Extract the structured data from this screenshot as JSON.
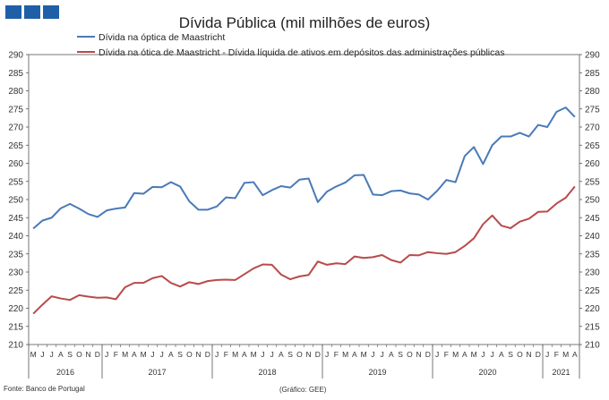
{
  "branding": {
    "logo_color": "#1f5fa8"
  },
  "chart_data": {
    "type": "line",
    "title": "Dívida Pública (mil milhões de euros)",
    "xlabel": "",
    "ylabel": "",
    "ylim": [
      210,
      290
    ],
    "yticks": [
      210,
      215,
      220,
      225,
      230,
      235,
      240,
      245,
      250,
      255,
      260,
      265,
      270,
      275,
      280,
      285,
      290
    ],
    "grid": false,
    "legend_position": "top",
    "x": [
      "M",
      "J",
      "J",
      "A",
      "S",
      "O",
      "N",
      "D",
      "J",
      "F",
      "M",
      "A",
      "M",
      "J",
      "J",
      "A",
      "S",
      "O",
      "N",
      "D",
      "J",
      "F",
      "M",
      "A",
      "M",
      "J",
      "J",
      "A",
      "S",
      "O",
      "N",
      "D",
      "J",
      "F",
      "M",
      "A",
      "M",
      "J",
      "J",
      "A",
      "S",
      "O",
      "N",
      "D",
      "J",
      "F",
      "M",
      "A",
      "M",
      "J",
      "J",
      "A",
      "S",
      "O",
      "N",
      "D",
      "J",
      "F",
      "M",
      "A"
    ],
    "years": [
      {
        "label": "2016",
        "start": 0,
        "end": 8
      },
      {
        "label": "2017",
        "start": 8,
        "end": 20
      },
      {
        "label": "2018",
        "start": 20,
        "end": 32
      },
      {
        "label": "2019",
        "start": 32,
        "end": 44
      },
      {
        "label": "2020",
        "start": 44,
        "end": 56
      },
      {
        "label": "2021",
        "start": 56,
        "end": 60
      }
    ],
    "series": [
      {
        "name": "Dívida na óptica de Maastricht",
        "color": "#4a7ab8",
        "values": [
          242.0,
          244.2,
          245.0,
          247.6,
          248.8,
          247.5,
          246.0,
          245.2,
          247.0,
          247.5,
          247.8,
          251.8,
          251.6,
          253.5,
          253.4,
          254.8,
          253.6,
          249.5,
          247.2,
          247.2,
          248.1,
          250.6,
          250.4,
          254.6,
          254.8,
          251.2,
          252.6,
          253.7,
          253.3,
          255.5,
          255.8,
          249.3,
          252.2,
          253.6,
          254.7,
          256.7,
          256.8,
          251.4,
          251.2,
          252.3,
          252.5,
          251.7,
          251.4,
          250.0,
          252.4,
          255.4,
          254.8,
          262.0,
          264.5,
          259.8,
          265.0,
          267.4,
          267.4,
          268.4,
          267.4,
          270.6,
          270.0,
          274.2,
          275.4,
          272.8
        ]
      },
      {
        "name": "Dívida na ótica de Maastricht - Dívida líquida de ativos em depósitos das administrações públicas",
        "color": "#b94a4a",
        "values": [
          218.5,
          221.0,
          223.3,
          222.7,
          222.3,
          223.6,
          223.2,
          222.9,
          223.0,
          222.5,
          225.8,
          227.0,
          227.0,
          228.3,
          228.9,
          227.0,
          226.0,
          227.2,
          226.7,
          227.5,
          227.8,
          227.9,
          227.8,
          229.4,
          231.0,
          232.1,
          232.0,
          229.3,
          228.0,
          228.8,
          229.2,
          232.9,
          232.0,
          232.4,
          232.2,
          234.3,
          233.9,
          234.1,
          234.7,
          233.3,
          232.6,
          234.7,
          234.6,
          235.5,
          235.2,
          235.0,
          235.5,
          237.2,
          239.3,
          243.2,
          245.6,
          242.8,
          242.1,
          243.9,
          244.7,
          246.6,
          246.7,
          248.9,
          250.5,
          253.6
        ]
      }
    ]
  },
  "footer": {
    "source": "Fonte: Banco de Portugal",
    "credit": "(Gráfico: GEE)"
  }
}
